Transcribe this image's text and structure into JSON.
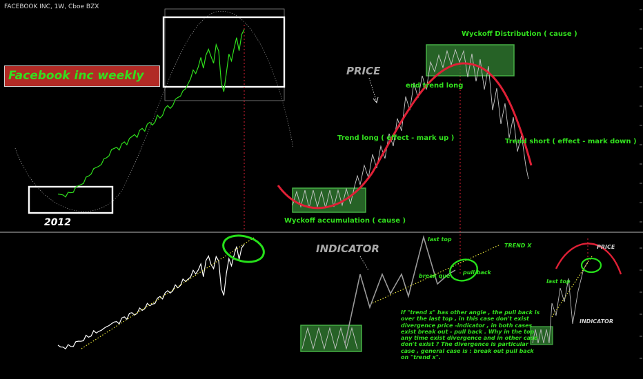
{
  "header": {
    "ticker": "FACEBOOK INC, 1W, Cboe BZX"
  },
  "labels": {
    "title": "Facebook inc   weekly",
    "year": "2012",
    "price": "PRICE",
    "indicator": "INDICATOR",
    "wyckoff_distribution": "Wyckoff Distribution ( cause )",
    "end_trend_long": "end trend long",
    "trend_long": "Trend long ( effect - mark up )",
    "trend_short": "Trend short ( effect - mark down )",
    "wyckoff_accumulation": "Wyckoff accumulation ( cause )",
    "last_top": "last top",
    "trend_x": "TREND X",
    "break_out": "break que",
    "pull_back": "pull back",
    "last_top_small": "last top",
    "price_small": "PRICE",
    "indicator_small": "INDICATOR",
    "note": "If \"trend x\" has other angle , the pull back is over the last top , in this case don't exist divergence price -indicator , in both cases exist break out - pull back . Why in the top any time exist divergence and in other case don't exist ? The divergence is particular case , general case is : break out pull back on \"trend x\"."
  },
  "colors": {
    "background": "#000000",
    "price_line": "#2fe01c",
    "indicator_line": "#ffffff",
    "accent_red": "#e02036",
    "box_green": "#2f7a30",
    "text_green": "#32e01e",
    "trendline_yellow": "#e7e33a"
  },
  "chart_data": {
    "type": "line",
    "panes": [
      "price",
      "indicator"
    ],
    "series": [
      {
        "name": "",
        "values": [
          18,
          19,
          20,
          19,
          21,
          22,
          24,
          27,
          30,
          33,
          36,
          40,
          43,
          47,
          50,
          53,
          56,
          60,
          63,
          66,
          70,
          74,
          77,
          80,
          78,
          82,
          86,
          84,
          88,
          92,
          96,
          94,
          99,
          103,
          101,
          106,
          110,
          108,
          113,
          118,
          116,
          121,
          126,
          131,
          129,
          134,
          138,
          142,
          145,
          148,
          152,
          160,
          168,
          175,
          172,
          182,
          190,
          178,
          196,
          205,
          192,
          185,
          210,
          198,
          160,
          150,
          175,
          195,
          188,
          205,
          215,
          200,
          222,
          230
        ]
      },
      {
        "name": "",
        "values": [
          10,
          9,
          11,
          10,
          12,
          11,
          13,
          16,
          19,
          21,
          24,
          28,
          27,
          31,
          35,
          33,
          38,
          42,
          40,
          45,
          49,
          47,
          52,
          55,
          53,
          58,
          62,
          60,
          65,
          68,
          66,
          71,
          75,
          73,
          78,
          82,
          80,
          85,
          88,
          92,
          97,
          95,
          100,
          106,
          104,
          110,
          115,
          112,
          118,
          124,
          122,
          128,
          134,
          140,
          136,
          145,
          150,
          130,
          160,
          170,
          150,
          145,
          168,
          155,
          110,
          100,
          140,
          160,
          150,
          170,
          180,
          160,
          182,
          190
        ]
      }
    ]
  }
}
